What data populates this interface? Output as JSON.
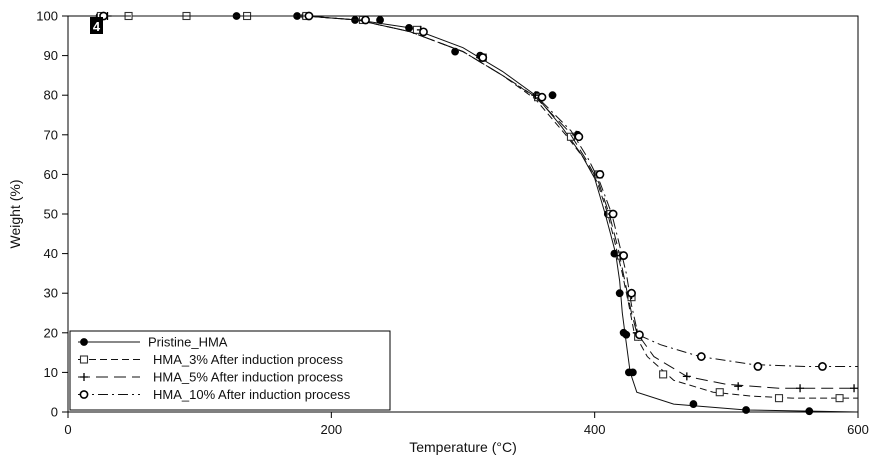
{
  "chart_data": {
    "type": "line",
    "xlabel": "Temperature (°C)",
    "ylabel": "Weight (%)",
    "xlim": [
      0,
      600
    ],
    "ylim": [
      0,
      100
    ],
    "xticks": [
      0,
      200,
      400,
      600
    ],
    "yticks": [
      0,
      10,
      20,
      30,
      40,
      50,
      60,
      70,
      80,
      90,
      100
    ],
    "grid": false,
    "legend_position": "bottom-left",
    "badge": "4",
    "series": [
      {
        "name": "Pristine_HMA",
        "marker": "filled-circle",
        "line": "solid",
        "x": [
          25,
          100,
          150,
          180,
          220,
          260,
          300,
          330,
          355,
          375,
          390,
          400,
          408,
          412,
          416,
          419,
          421,
          423,
          427,
          432,
          460,
          515,
          600
        ],
        "y": [
          100,
          100,
          100,
          100,
          99,
          97,
          92,
          86,
          80,
          72,
          65,
          59,
          50,
          45,
          40,
          33,
          25,
          20,
          10,
          5,
          2,
          0.5,
          0
        ],
        "markers_x": [
          24,
          128,
          174,
          180,
          218,
          237,
          259,
          294,
          313,
          356,
          368,
          387,
          402,
          410,
          415,
          419,
          422,
          424,
          426,
          429,
          475,
          515,
          563
        ],
        "markers_y": [
          100,
          100,
          100,
          100,
          99,
          99,
          97,
          91,
          90,
          80,
          80,
          70,
          60,
          50,
          40,
          30,
          20,
          19.5,
          10,
          10,
          2,
          0.5,
          0.2
        ]
      },
      {
        "name": "HMA_3% After induction process",
        "marker": "open-square",
        "line": "dashed",
        "x": [
          25,
          100,
          150,
          180,
          220,
          260,
          300,
          330,
          355,
          378,
          392,
          402,
          410,
          416,
          421,
          426,
          430,
          440,
          460,
          490,
          520,
          550,
          600
        ],
        "y": [
          100,
          100,
          100,
          100,
          99,
          96,
          91,
          85,
          79,
          70,
          64,
          58,
          50,
          42,
          35,
          27,
          20,
          14,
          8,
          5,
          4,
          3.5,
          3.5
        ],
        "markers_x": [
          25,
          46,
          90,
          136,
          181,
          224,
          265,
          315,
          357,
          382,
          403,
          412,
          420,
          428,
          433,
          452,
          495,
          540,
          586
        ],
        "markers_y": [
          100,
          100,
          100,
          100,
          100,
          99,
          96.5,
          89.5,
          79.5,
          69.5,
          60,
          50,
          39.5,
          29,
          19,
          9.5,
          5,
          3.5,
          3.5
        ]
      },
      {
        "name": "HMA_5% After induction process",
        "marker": "plus",
        "line": "long-dashed",
        "x": [
          25,
          100,
          150,
          180,
          220,
          260,
          300,
          330,
          355,
          380,
          393,
          403,
          411,
          418,
          423,
          428,
          432,
          445,
          470,
          500,
          540,
          600
        ],
        "y": [
          100,
          100,
          100,
          100,
          99,
          96,
          91,
          85,
          79.5,
          71,
          64,
          58,
          50,
          41,
          33,
          25,
          20,
          14,
          9,
          7,
          6,
          6
        ],
        "markers_x": [
          30,
          225,
          268,
          313,
          355,
          386,
          404,
          413,
          420,
          428,
          432,
          470,
          509,
          556,
          597
        ],
        "markers_y": [
          100,
          99,
          96.5,
          89.5,
          80,
          70,
          60,
          50,
          39.5,
          29.5,
          20,
          9,
          6.5,
          6,
          6
        ]
      },
      {
        "name": "HMA_10% After induction process",
        "marker": "open-circle",
        "line": "dash-dot",
        "x": [
          25,
          100,
          150,
          180,
          220,
          260,
          300,
          330,
          358,
          382,
          395,
          404,
          413,
          419,
          424,
          428,
          433,
          450,
          480,
          520,
          560,
          600
        ],
        "y": [
          100,
          100,
          100,
          100,
          99,
          96,
          91,
          85,
          79,
          71,
          64,
          58,
          50,
          42,
          35,
          27,
          19.5,
          17,
          14,
          12,
          11.5,
          11.5
        ],
        "markers_x": [
          27,
          183,
          226,
          270,
          315,
          360,
          388,
          404,
          414,
          422,
          428,
          434,
          481,
          524,
          573
        ],
        "markers_y": [
          100,
          100,
          99,
          96,
          89.5,
          79.5,
          69.5,
          60,
          50,
          39.5,
          30,
          19.5,
          14,
          11.5,
          11.5
        ]
      }
    ]
  }
}
